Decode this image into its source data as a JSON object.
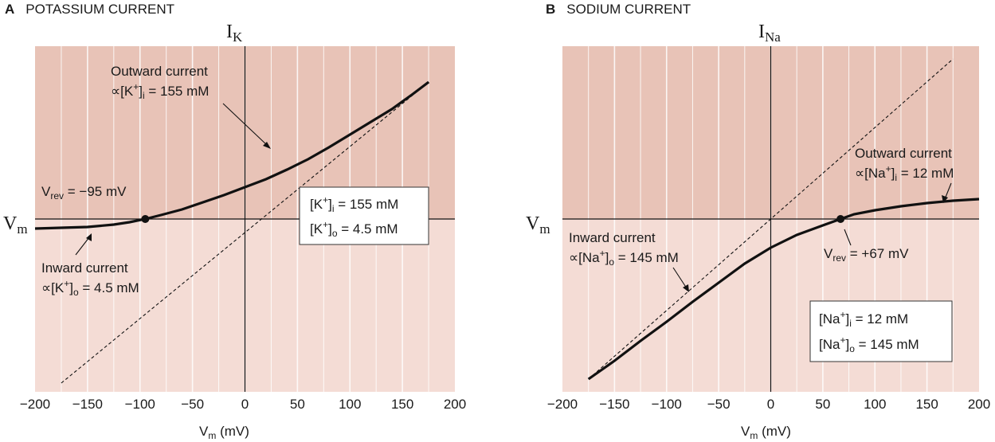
{
  "colors": {
    "outward_region": "#e8c3b7",
    "inward_region": "#f4dcd5",
    "grid": "#ffffff",
    "curve": "#111111"
  },
  "panels": [
    {
      "letter": "A",
      "title": "POTASSIUM CURRENT",
      "y_axis": {
        "main": "I",
        "sub": "K"
      },
      "x_axis_side": {
        "main": "V",
        "sub": "m"
      },
      "x_label": {
        "main": "V",
        "sub": "m",
        "rest": " (mV)"
      },
      "reversal": {
        "pre": "V",
        "sub": "rev",
        "post": " = −95 mV"
      },
      "outward": {
        "line1": "Outward current",
        "pre": "∝[K",
        "sup": "+",
        "mid": "]",
        "sub": "i",
        "post": " = 155 mM"
      },
      "inward": {
        "line1": "Inward current",
        "pre": "∝[K",
        "sup": "+",
        "mid": "]",
        "sub": "o",
        "post": " = 4.5 mM"
      },
      "box": [
        {
          "pre": "[K",
          "sup": "+",
          "mid": "]",
          "sub": "i",
          "post": " = 155 mM"
        },
        {
          "pre": "[K",
          "sup": "+",
          "mid": "]",
          "sub": "o",
          "post": " = 4.5 mM"
        }
      ]
    },
    {
      "letter": "B",
      "title": "SODIUM CURRENT",
      "y_axis": {
        "main": "I",
        "sub": "Na"
      },
      "x_axis_side": {
        "main": "V",
        "sub": "m"
      },
      "x_label": {
        "main": "V",
        "sub": "m",
        "rest": " (mV)"
      },
      "reversal": {
        "pre": "V",
        "sub": "rev",
        "post": " = +67 mV"
      },
      "outward": {
        "line1": "Outward current",
        "pre": "∝[Na",
        "sup": "+",
        "mid": "]",
        "sub": "i",
        "post": " = 12 mM"
      },
      "inward": {
        "line1": "Inward current",
        "pre": "∝[Na",
        "sup": "+",
        "mid": "]",
        "sub": "o",
        "post": " = 145 mM"
      },
      "box": [
        {
          "pre": "[Na",
          "sup": "+",
          "mid": "]",
          "sub": "i",
          "post": " = 12 mM"
        },
        {
          "pre": "[Na",
          "sup": "+",
          "mid": "]",
          "sub": "o",
          "post": " = 145 mM"
        }
      ]
    }
  ],
  "chart_data": [
    {
      "type": "line",
      "title": "POTASSIUM CURRENT",
      "xlabel": "Vm (mV)",
      "ylabel": "IK",
      "xlim": [
        -200,
        200
      ],
      "x_ticks": [
        -200,
        -150,
        -100,
        -50,
        0,
        50,
        100,
        150,
        200
      ],
      "grid": true,
      "reversal_potential": -95,
      "series": [
        {
          "style": "solid",
          "x": [
            -200,
            -175,
            -150,
            -125,
            -110,
            -95,
            -80,
            -60,
            -40,
            -20,
            0,
            20,
            40,
            60,
            80,
            100,
            120,
            140,
            160,
            175
          ],
          "y": [
            -0.12,
            -0.11,
            -0.1,
            -0.07,
            -0.04,
            0,
            0.05,
            0.12,
            0.21,
            0.3,
            0.4,
            0.5,
            0.62,
            0.75,
            0.9,
            1.06,
            1.22,
            1.38,
            1.57,
            1.72
          ]
        },
        {
          "style": "dashed",
          "x": [
            -175,
            175
          ],
          "y": [
            -2.06,
            1.72
          ]
        }
      ]
    },
    {
      "type": "line",
      "title": "SODIUM CURRENT",
      "xlabel": "Vm (mV)",
      "ylabel": "INa",
      "xlim": [
        -200,
        200
      ],
      "x_ticks": [
        -200,
        -150,
        -100,
        -50,
        0,
        50,
        100,
        150,
        200
      ],
      "grid": true,
      "reversal_potential": 67,
      "series": [
        {
          "style": "solid",
          "x": [
            -175,
            -150,
            -125,
            -100,
            -75,
            -50,
            -25,
            0,
            25,
            50,
            67,
            80,
            100,
            125,
            150,
            175,
            200
          ],
          "y": [
            -2.01,
            -1.78,
            -1.53,
            -1.29,
            -1.04,
            -0.8,
            -0.56,
            -0.36,
            -0.2,
            -0.08,
            0,
            0.06,
            0.11,
            0.16,
            0.2,
            0.23,
            0.25
          ]
        },
        {
          "style": "dashed",
          "x": [
            -175,
            175
          ],
          "y": [
            -2.01,
            2.01
          ]
        }
      ]
    }
  ]
}
